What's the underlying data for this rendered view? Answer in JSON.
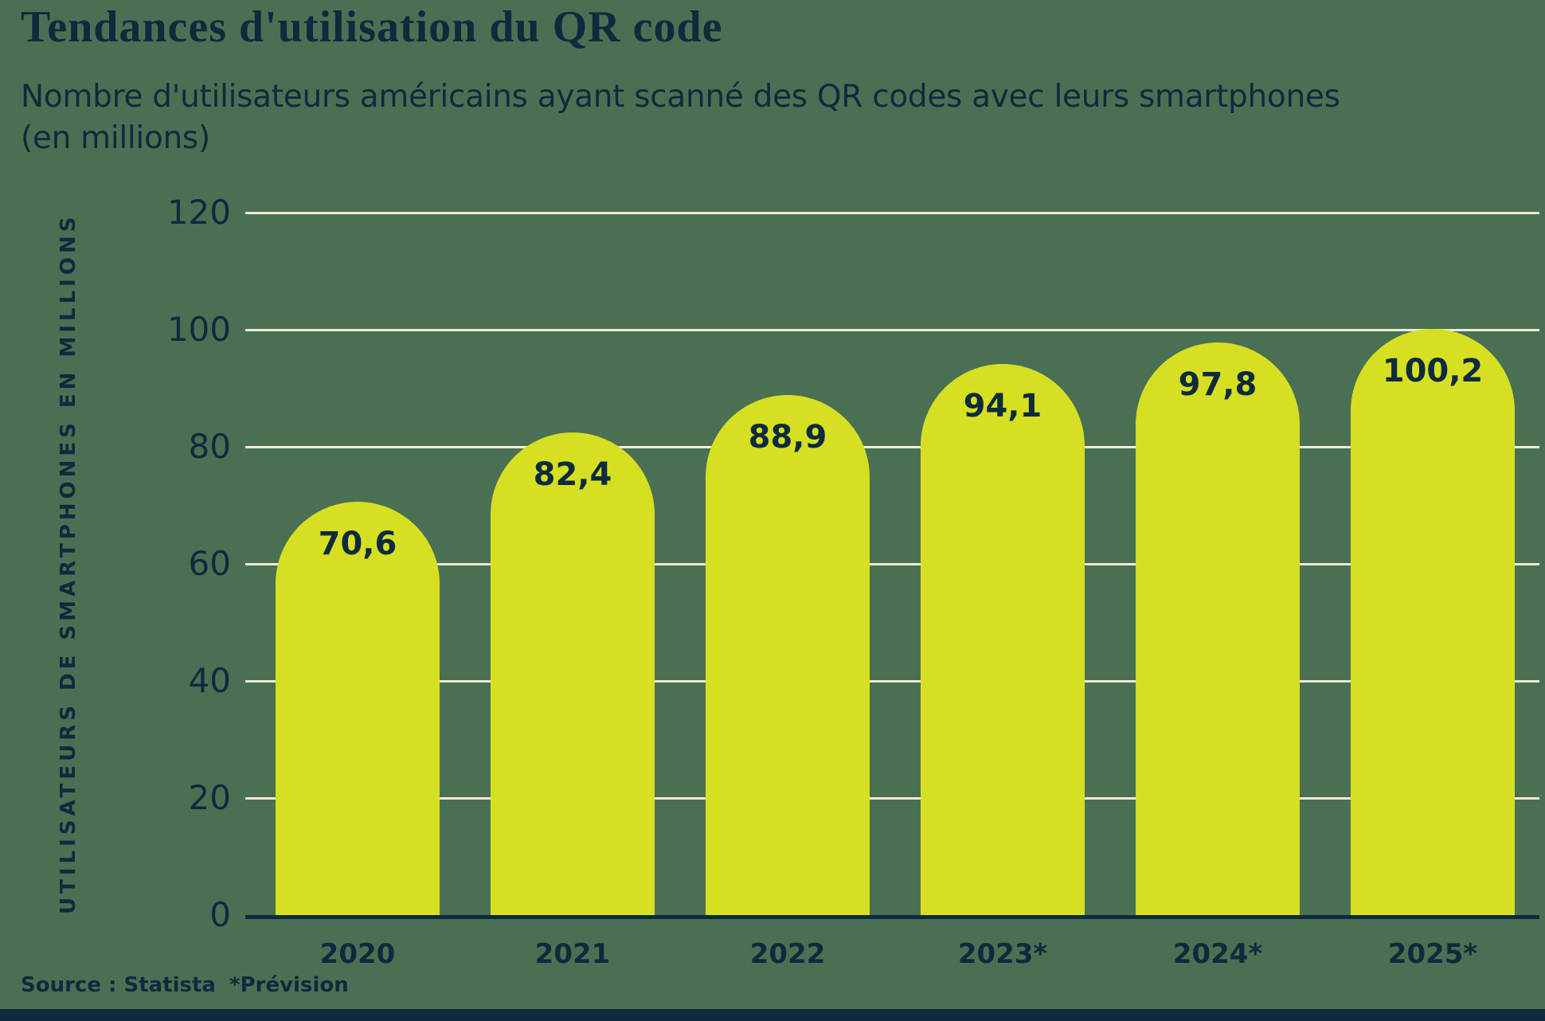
{
  "title": "Tendances d'utilisation du QR code",
  "subtitle": {
    "line1": "Nombre d'utilisateurs américains ayant scanné des QR codes avec leurs smartphones",
    "line2": "(en millions)"
  },
  "chart_data": {
    "type": "bar",
    "title": "Tendances d'utilisation du QR code",
    "subtitle": "Nombre d'utilisateurs américains ayant scanné des QR codes avec leurs smartphones (en millions)",
    "ylabel": "UTILISATEURS DE SMARTPHONES EN MILLIONS",
    "xlabel": "",
    "categories": [
      "2020",
      "2021",
      "2022",
      "2023*",
      "2024*",
      "2025*"
    ],
    "values": [
      70.6,
      82.4,
      88.9,
      94.1,
      97.8,
      100.2
    ],
    "value_labels": [
      "70,6",
      "82,4",
      "88,9",
      "94,1",
      "97,8",
      "100,2"
    ],
    "yticks": [
      0,
      20,
      40,
      60,
      80,
      100,
      120
    ],
    "ylim": [
      0,
      120
    ],
    "grid": true,
    "legend": false,
    "bar_color": "#d6df22",
    "background_color": "#4a7053",
    "gridline_color": "#f0ead2",
    "text_color": "#0d2b3d"
  },
  "footer": {
    "source": "Source : Statista",
    "note": "*Prévision"
  }
}
